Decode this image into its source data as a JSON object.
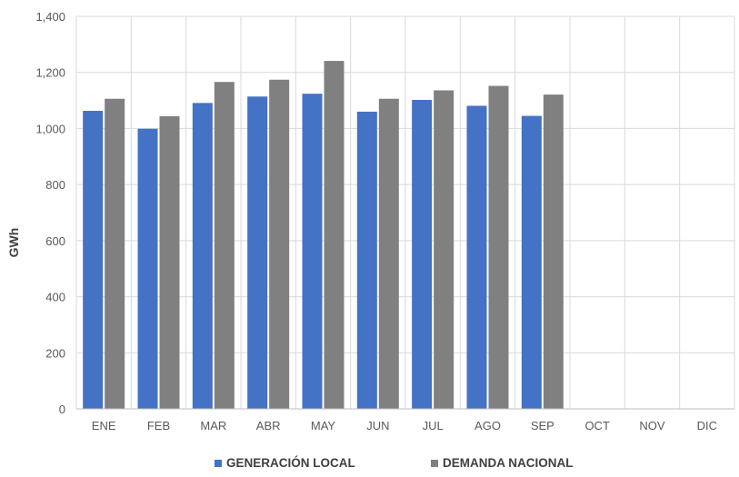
{
  "chart_data": {
    "type": "bar",
    "title": "",
    "xlabel": "",
    "ylabel": "GWh",
    "ylim": [
      0,
      1400
    ],
    "yticks": [
      0,
      200,
      400,
      600,
      800,
      1000,
      1200,
      1400
    ],
    "ytick_labels": [
      "0",
      "200",
      "400",
      "600",
      "800",
      "1,000",
      "1,200",
      "1,400"
    ],
    "categories": [
      "ENE",
      "FEB",
      "MAR",
      "ABR",
      "MAY",
      "JUN",
      "JUL",
      "AGO",
      "SEP",
      "OCT",
      "NOV",
      "DIC"
    ],
    "series": [
      {
        "name": "GENERACIÓN LOCAL",
        "color": "#4472C4",
        "values": [
          1063,
          999,
          1091,
          1114,
          1124,
          1060,
          1102,
          1081,
          1045,
          null,
          null,
          null
        ]
      },
      {
        "name": "DEMANDA NACIONAL",
        "color": "#808080",
        "values": [
          1106,
          1044,
          1166,
          1174,
          1241,
          1106,
          1136,
          1152,
          1121,
          null,
          null,
          null
        ]
      }
    ],
    "grid": true,
    "legend_position": "bottom"
  }
}
